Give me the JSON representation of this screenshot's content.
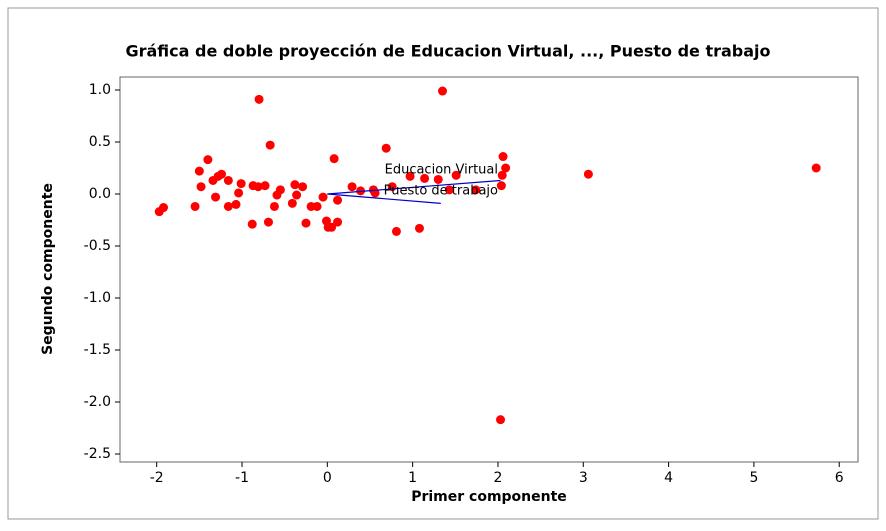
{
  "chart_data": {
    "type": "biplot",
    "title": "Gráfica de doble proyección de Educacion Virtual, ..., Puesto de trabajo",
    "x_label": "Primer componente",
    "y_label": "Segundo componente",
    "x": [
      -1.97,
      -1.92,
      -1.55,
      -1.5,
      -1.48,
      -1.4,
      -1.34,
      -1.31,
      -1.28,
      -1.24,
      -1.16,
      -1.16,
      -1.07,
      -1.04,
      -1.01,
      -0.88,
      -0.87,
      -0.81,
      -0.8,
      -0.73,
      -0.69,
      -0.67,
      -0.62,
      -0.59,
      -0.55,
      -0.41,
      -0.38,
      -0.36,
      -0.29,
      -0.25,
      -0.19,
      -0.12,
      -0.05,
      -0.01,
      0.01,
      0.05,
      0.08,
      0.12,
      0.12,
      0.29,
      0.39,
      0.54,
      0.56,
      0.69,
      0.76,
      0.81,
      0.97,
      1.08,
      1.14,
      1.3,
      1.35,
      1.43,
      1.51,
      1.74,
      2.03,
      2.04,
      2.06,
      2.09,
      2.05,
      3.06,
      5.73
    ],
    "values": [
      -0.17,
      -0.13,
      -0.12,
      0.22,
      0.07,
      0.33,
      0.13,
      -0.03,
      0.17,
      0.19,
      0.13,
      -0.12,
      -0.1,
      0.01,
      0.1,
      -0.29,
      0.08,
      0.07,
      0.91,
      0.08,
      -0.27,
      0.47,
      -0.12,
      -0.01,
      0.04,
      -0.09,
      0.09,
      -0.01,
      0.07,
      -0.28,
      -0.12,
      -0.12,
      -0.03,
      -0.26,
      -0.32,
      -0.32,
      0.34,
      -0.06,
      -0.27,
      0.07,
      0.03,
      0.04,
      0.01,
      0.44,
      0.07,
      -0.36,
      0.17,
      -0.33,
      0.15,
      0.14,
      0.99,
      0.04,
      0.18,
      0.04,
      -2.17,
      0.08,
      0.36,
      0.25,
      0.18,
      0.19,
      0.25
    ],
    "color": "#ff0000",
    "loadings": [
      {
        "name": "Educacion Virtual",
        "x": 2.03,
        "y": 0.13
      },
      {
        "name": "Puesto de trabajo",
        "x": 1.33,
        "y": -0.09
      }
    ],
    "loading_color": "#0000cc",
    "xlim": [
      -2.43,
      6.22
    ],
    "ylim": [
      -2.577,
      1.125
    ],
    "xticks": [
      -2,
      -1,
      0,
      1,
      2,
      3,
      4,
      5,
      6
    ],
    "yticks": [
      {
        "value": 1,
        "label": "1.0"
      },
      {
        "value": 0.5,
        "label": "0.5"
      },
      {
        "value": 0,
        "label": "0.0"
      },
      {
        "value": -0.5,
        "label": "-0.5"
      },
      {
        "value": -1,
        "label": "-1.0"
      },
      {
        "value": -1.5,
        "label": "-1.5"
      },
      {
        "value": -2,
        "label": "-2.0"
      },
      {
        "value": -2.5,
        "label": "-2.5"
      }
    ]
  }
}
